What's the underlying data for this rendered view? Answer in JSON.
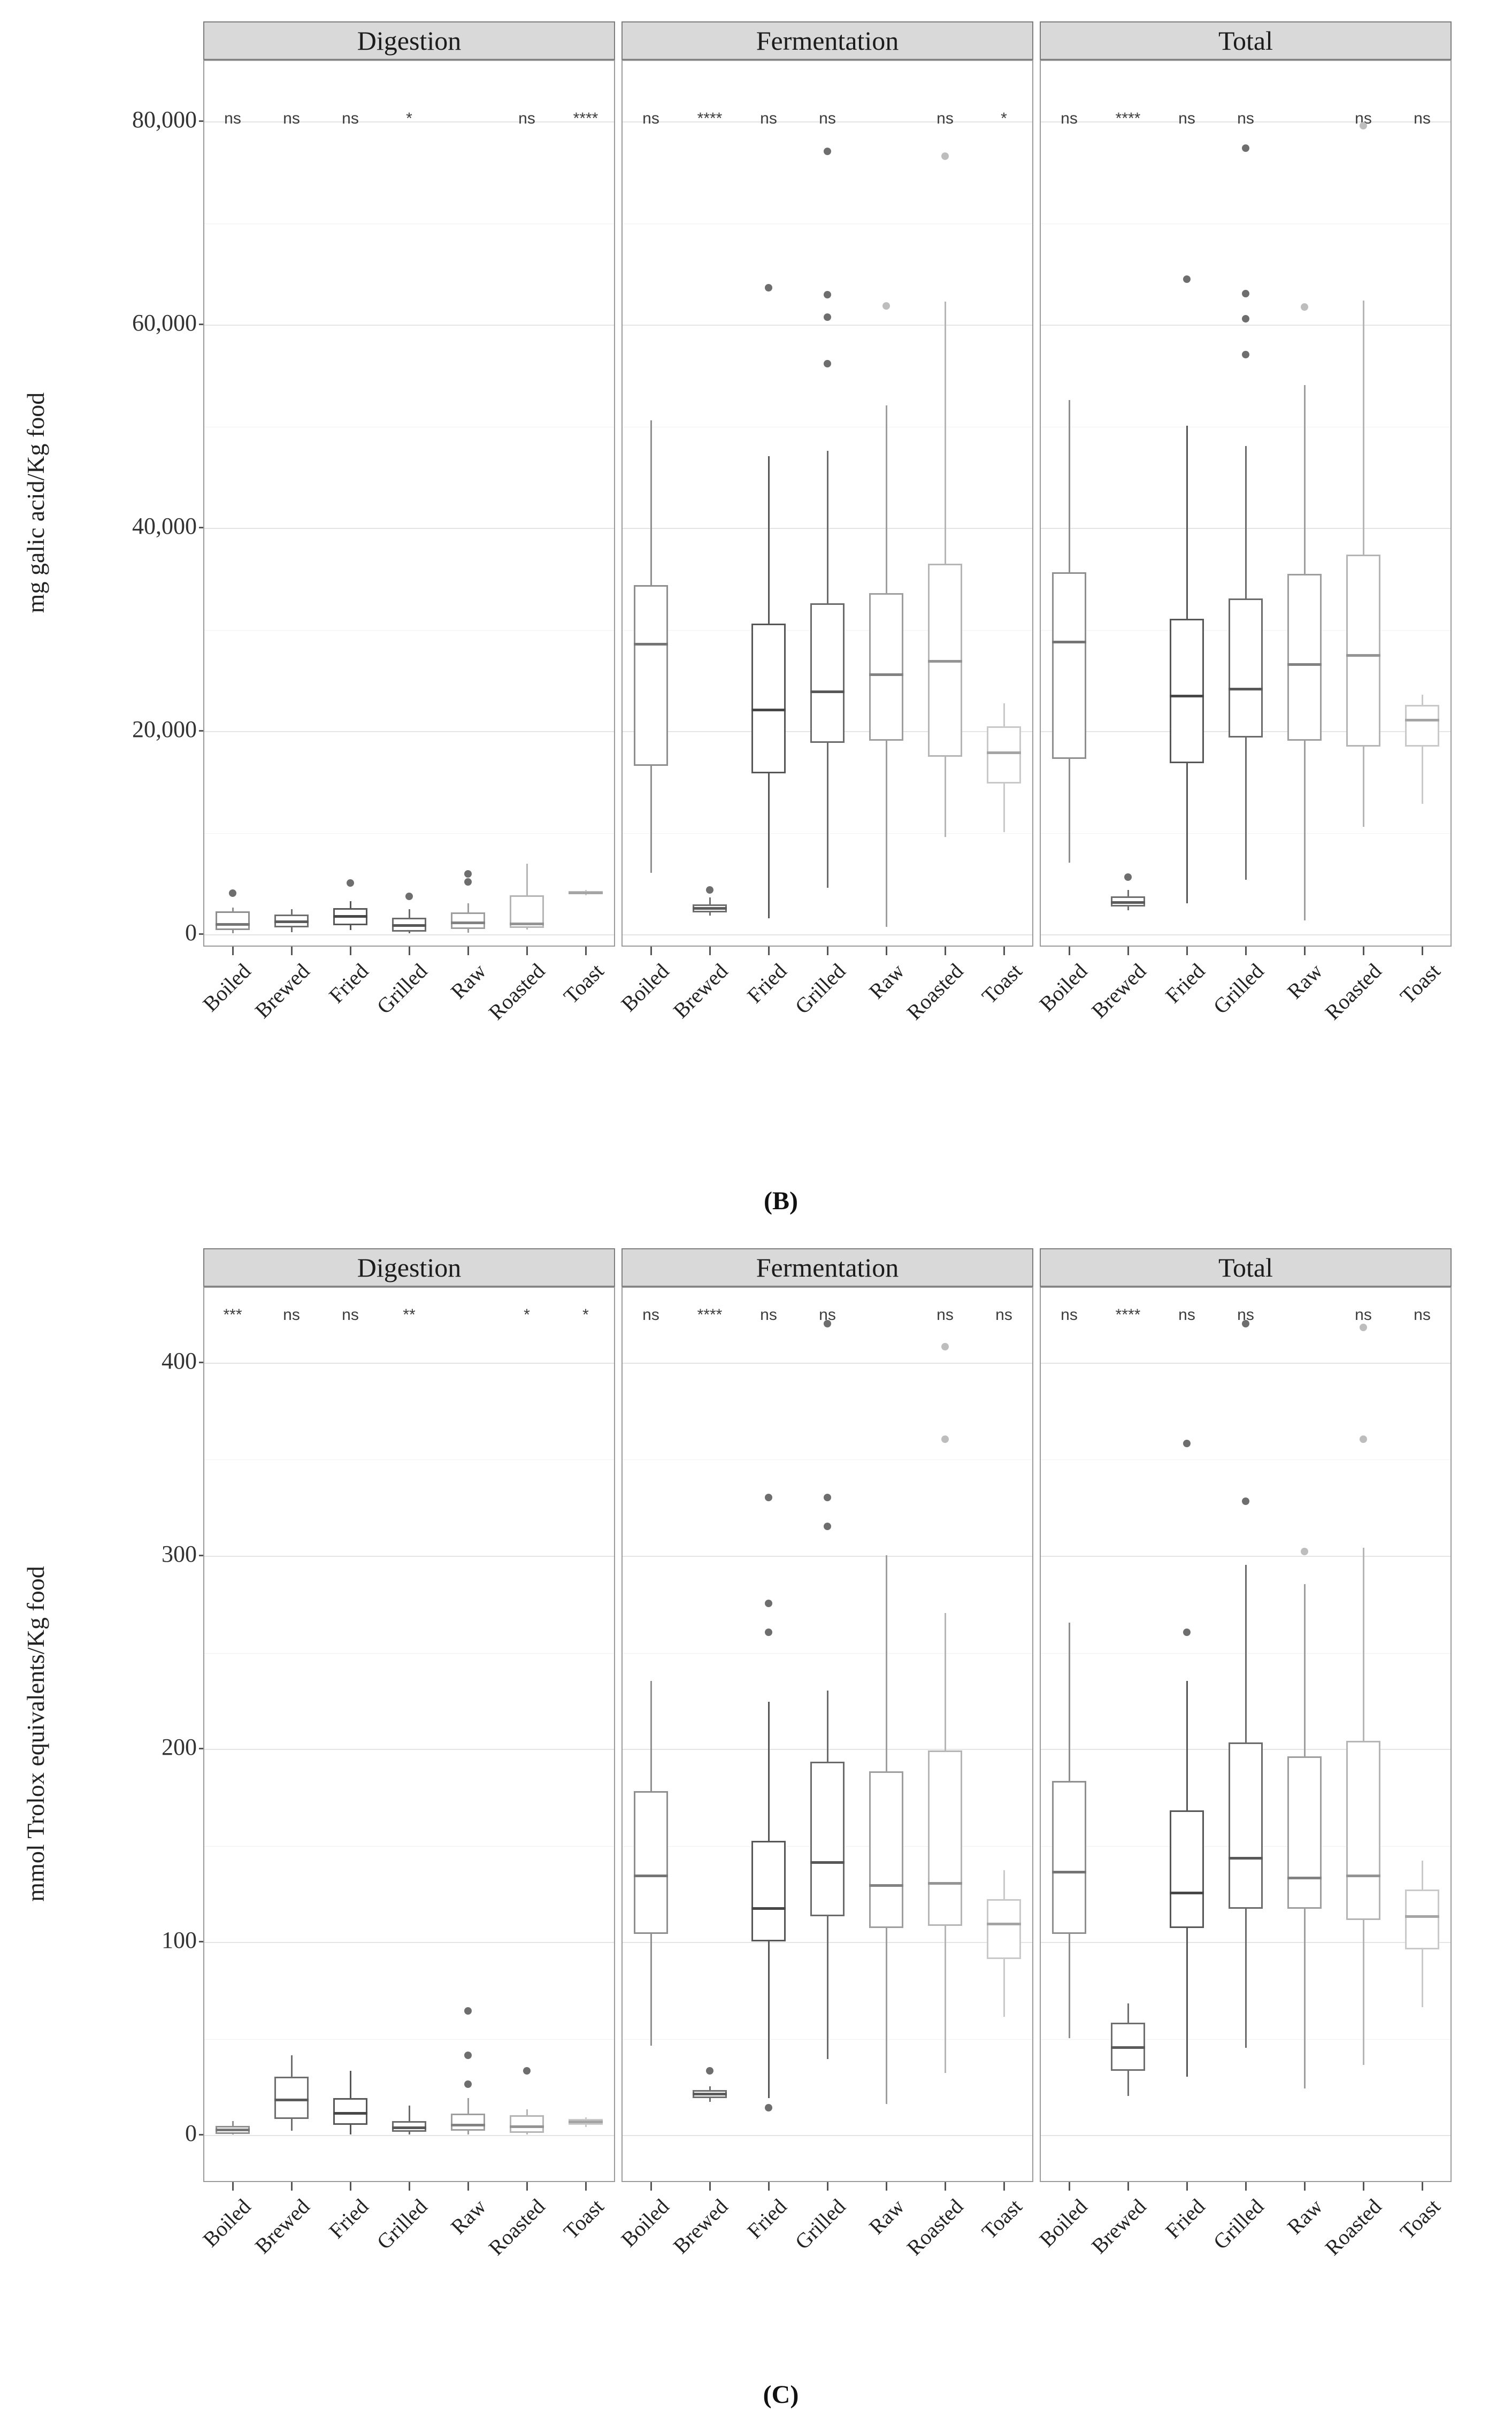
{
  "chart_data": {
    "type": "boxplot-grid",
    "description": "Two faceted box-plot figures (B top, C bottom), each with facets Digestion / Fermentation / Total and seven preparation categories; grey-scale boxes with significance annotations above each category.",
    "categories": [
      "Boiled",
      "Brewed",
      "Fried",
      "Grilled",
      "Raw",
      "Roasted",
      "Toast"
    ],
    "category_colors": [
      "#8f8f8f",
      "#6f6f6f",
      "#575757",
      "#6b6b6b",
      "#9e9e9e",
      "#b5b5b5",
      "#c9c9c9"
    ],
    "style": {
      "strip_bg": "#d9d9d9",
      "panel_border": "#9a9a9a",
      "outlier_dark": "#6e6e6e",
      "outlier_light": "#bdbdbd",
      "grid_major": "#e4e4e4",
      "grid_minor": "#f1f1f1"
    },
    "figures": [
      {
        "id": "B",
        "caption": "(B)",
        "y_axis": {
          "title": "mg galic acid/Kg food",
          "ylim": [
            -1160,
            86000
          ],
          "ticks": [
            {
              "v": 0,
              "label": "0"
            },
            {
              "v": 20000,
              "label": "20,000"
            },
            {
              "v": 40000,
              "label": "40,000"
            },
            {
              "v": 60000,
              "label": "60,000"
            },
            {
              "v": 80000,
              "label": "80,000"
            }
          ],
          "minor": [
            10000,
            30000,
            50000,
            70000
          ]
        },
        "facets": [
          {
            "title": "Digestion",
            "series": [
              {
                "category": "Boiled",
                "sig": "ns",
                "min": 50,
                "q1": 350,
                "median": 900,
                "q3": 2200,
                "max": 2600,
                "outliers": [
                  {
                    "v": 4000,
                    "tone": "dark"
                  }
                ]
              },
              {
                "category": "Brewed",
                "sig": "ns",
                "min": 150,
                "q1": 650,
                "median": 1200,
                "q3": 1900,
                "max": 2400,
                "outliers": []
              },
              {
                "category": "Fried",
                "sig": "ns",
                "min": 350,
                "q1": 850,
                "median": 1700,
                "q3": 2500,
                "max": 3200,
                "outliers": [
                  {
                    "v": 5000,
                    "tone": "dark"
                  }
                ]
              },
              {
                "category": "Grilled",
                "sig": "*",
                "min": 50,
                "q1": 200,
                "median": 800,
                "q3": 1600,
                "max": 2400,
                "outliers": [
                  {
                    "v": 3700,
                    "tone": "dark"
                  }
                ]
              },
              {
                "category": "Raw",
                "sig": "",
                "min": 100,
                "q1": 450,
                "median": 1100,
                "q3": 2100,
                "max": 3000,
                "outliers": [
                  {
                    "v": 5900,
                    "tone": "dark"
                  },
                  {
                    "v": 5100,
                    "tone": "dark"
                  }
                ]
              },
              {
                "category": "Roasted",
                "sig": "ns",
                "min": 400,
                "q1": 550,
                "median": 950,
                "q3": 3800,
                "max": 6900,
                "outliers": []
              },
              {
                "category": "Toast",
                "sig": "****",
                "min": 3800,
                "q1": 3900,
                "median": 4050,
                "q3": 4200,
                "max": 4300,
                "outliers": []
              }
            ]
          },
          {
            "title": "Fermentation",
            "series": [
              {
                "category": "Boiled",
                "sig": "ns",
                "min": 6000,
                "q1": 16500,
                "median": 28500,
                "q3": 34300,
                "max": 50500,
                "outliers": []
              },
              {
                "category": "Brewed",
                "sig": "****",
                "min": 1800,
                "q1": 2100,
                "median": 2500,
                "q3": 2900,
                "max": 3600,
                "outliers": [
                  {
                    "v": 4300,
                    "tone": "dark"
                  }
                ]
              },
              {
                "category": "Fried",
                "sig": "ns",
                "min": 1500,
                "q1": 15800,
                "median": 22000,
                "q3": 30500,
                "max": 47000,
                "outliers": [
                  {
                    "v": 63600,
                    "tone": "dark"
                  }
                ]
              },
              {
                "category": "Grilled",
                "sig": "ns",
                "min": 4500,
                "q1": 18800,
                "median": 23800,
                "q3": 32500,
                "max": 47500,
                "outliers": [
                  {
                    "v": 77000,
                    "tone": "dark"
                  },
                  {
                    "v": 62900,
                    "tone": "dark"
                  },
                  {
                    "v": 60700,
                    "tone": "dark"
                  },
                  {
                    "v": 56100,
                    "tone": "dark"
                  }
                ]
              },
              {
                "category": "Raw",
                "sig": "",
                "min": 700,
                "q1": 19000,
                "median": 25500,
                "q3": 33500,
                "max": 52000,
                "outliers": [
                  {
                    "v": 61800,
                    "tone": "light"
                  }
                ]
              },
              {
                "category": "Roasted",
                "sig": "ns",
                "min": 9500,
                "q1": 17400,
                "median": 26800,
                "q3": 36400,
                "max": 62200,
                "outliers": [
                  {
                    "v": 76500,
                    "tone": "light"
                  }
                ]
              },
              {
                "category": "Toast",
                "sig": "*",
                "min": 10000,
                "q1": 14800,
                "median": 17800,
                "q3": 20400,
                "max": 22700,
                "outliers": []
              }
            ]
          },
          {
            "title": "Total",
            "series": [
              {
                "category": "Boiled",
                "sig": "ns",
                "min": 7000,
                "q1": 17200,
                "median": 28700,
                "q3": 35600,
                "max": 52500,
                "outliers": []
              },
              {
                "category": "Brewed",
                "sig": "****",
                "min": 2300,
                "q1": 2700,
                "median": 3100,
                "q3": 3700,
                "max": 4300,
                "outliers": [
                  {
                    "v": 5600,
                    "tone": "dark"
                  }
                ]
              },
              {
                "category": "Fried",
                "sig": "ns",
                "min": 3000,
                "q1": 16800,
                "median": 23400,
                "q3": 31000,
                "max": 50000,
                "outliers": [
                  {
                    "v": 64400,
                    "tone": "dark"
                  }
                ]
              },
              {
                "category": "Grilled",
                "sig": "ns",
                "min": 5300,
                "q1": 19300,
                "median": 24100,
                "q3": 33000,
                "max": 48000,
                "outliers": [
                  {
                    "v": 77300,
                    "tone": "dark"
                  },
                  {
                    "v": 63000,
                    "tone": "dark"
                  },
                  {
                    "v": 60500,
                    "tone": "dark"
                  },
                  {
                    "v": 57000,
                    "tone": "dark"
                  }
                ]
              },
              {
                "category": "Raw",
                "sig": "",
                "min": 1300,
                "q1": 19000,
                "median": 26500,
                "q3": 35400,
                "max": 54000,
                "outliers": [
                  {
                    "v": 61700,
                    "tone": "light"
                  }
                ]
              },
              {
                "category": "Roasted",
                "sig": "ns",
                "min": 10500,
                "q1": 18400,
                "median": 27400,
                "q3": 37300,
                "max": 62300,
                "outliers": [
                  {
                    "v": 79500,
                    "tone": "light"
                  }
                ]
              },
              {
                "category": "Toast",
                "sig": "ns",
                "min": 12800,
                "q1": 18400,
                "median": 21000,
                "q3": 22500,
                "max": 23500,
                "outliers": []
              }
            ]
          }
        ]
      },
      {
        "id": "C",
        "caption": "(C)",
        "y_axis": {
          "title": "mmol Trolox equivalents/Kg food",
          "ylim": [
            -24,
            439
          ],
          "ticks": [
            {
              "v": 0,
              "label": "0"
            },
            {
              "v": 100,
              "label": "100"
            },
            {
              "v": 200,
              "label": "200"
            },
            {
              "v": 300,
              "label": "300"
            },
            {
              "v": 400,
              "label": "400"
            }
          ],
          "minor": [
            50,
            150,
            250,
            350
          ]
        },
        "facets": [
          {
            "title": "Digestion",
            "series": [
              {
                "category": "Boiled",
                "sig": "***",
                "min": 0,
                "q1": 0.5,
                "median": 2.5,
                "q3": 4.5,
                "max": 7,
                "outliers": []
              },
              {
                "category": "Brewed",
                "sig": "ns",
                "min": 2,
                "q1": 8,
                "median": 18,
                "q3": 30,
                "max": 41,
                "outliers": []
              },
              {
                "category": "Fried",
                "sig": "ns",
                "min": 0,
                "q1": 5,
                "median": 11,
                "q3": 19,
                "max": 33,
                "outliers": []
              },
              {
                "category": "Grilled",
                "sig": "**",
                "min": 0,
                "q1": 1.5,
                "median": 3.5,
                "q3": 7,
                "max": 15,
                "outliers": []
              },
              {
                "category": "Raw",
                "sig": "",
                "min": 0,
                "q1": 2,
                "median": 5,
                "q3": 11,
                "max": 19,
                "outliers": [
                  {
                    "v": 64,
                    "tone": "dark"
                  },
                  {
                    "v": 41,
                    "tone": "dark"
                  },
                  {
                    "v": 26,
                    "tone": "dark"
                  }
                ]
              },
              {
                "category": "Roasted",
                "sig": "*",
                "min": 0,
                "q1": 1,
                "median": 4,
                "q3": 10,
                "max": 13,
                "outliers": [
                  {
                    "v": 33,
                    "tone": "dark"
                  }
                ]
              },
              {
                "category": "Toast",
                "sig": "*",
                "min": 4,
                "q1": 5,
                "median": 6.5,
                "q3": 8,
                "max": 9,
                "outliers": []
              }
            ]
          },
          {
            "title": "Fermentation",
            "series": [
              {
                "category": "Boiled",
                "sig": "ns",
                "min": 46,
                "q1": 104,
                "median": 134,
                "q3": 178,
                "max": 235,
                "outliers": []
              },
              {
                "category": "Brewed",
                "sig": "****",
                "min": 17,
                "q1": 19,
                "median": 21,
                "q3": 23,
                "max": 25,
                "outliers": [
                  {
                    "v": 33,
                    "tone": "dark"
                  }
                ]
              },
              {
                "category": "Fried",
                "sig": "ns",
                "min": 19,
                "q1": 100,
                "median": 117,
                "q3": 152,
                "max": 224,
                "outliers": [
                  {
                    "v": 330,
                    "tone": "dark"
                  },
                  {
                    "v": 275,
                    "tone": "dark"
                  },
                  {
                    "v": 260,
                    "tone": "dark"
                  },
                  {
                    "v": 14,
                    "tone": "dark"
                  }
                ]
              },
              {
                "category": "Grilled",
                "sig": "ns",
                "min": 39,
                "q1": 113,
                "median": 141,
                "q3": 193,
                "max": 230,
                "outliers": [
                  {
                    "v": 420,
                    "tone": "dark"
                  },
                  {
                    "v": 330,
                    "tone": "dark"
                  },
                  {
                    "v": 315,
                    "tone": "dark"
                  }
                ]
              },
              {
                "category": "Raw",
                "sig": "",
                "min": 16,
                "q1": 107,
                "median": 129,
                "q3": 188,
                "max": 300,
                "outliers": []
              },
              {
                "category": "Roasted",
                "sig": "ns",
                "min": 32,
                "q1": 108,
                "median": 130,
                "q3": 199,
                "max": 270,
                "outliers": [
                  {
                    "v": 408,
                    "tone": "light"
                  },
                  {
                    "v": 360,
                    "tone": "light"
                  }
                ]
              },
              {
                "category": "Toast",
                "sig": "ns",
                "min": 61,
                "q1": 91,
                "median": 109,
                "q3": 122,
                "max": 137,
                "outliers": []
              }
            ]
          },
          {
            "title": "Total",
            "series": [
              {
                "category": "Boiled",
                "sig": "ns",
                "min": 50,
                "q1": 104,
                "median": 136,
                "q3": 183,
                "max": 265,
                "outliers": []
              },
              {
                "category": "Brewed",
                "sig": "****",
                "min": 20,
                "q1": 33,
                "median": 45,
                "q3": 58,
                "max": 68,
                "outliers": []
              },
              {
                "category": "Fried",
                "sig": "ns",
                "min": 30,
                "q1": 107,
                "median": 125,
                "q3": 168,
                "max": 235,
                "outliers": [
                  {
                    "v": 358,
                    "tone": "dark"
                  },
                  {
                    "v": 260,
                    "tone": "dark"
                  }
                ]
              },
              {
                "category": "Grilled",
                "sig": "ns",
                "min": 45,
                "q1": 117,
                "median": 143,
                "q3": 203,
                "max": 295,
                "outliers": [
                  {
                    "v": 420,
                    "tone": "dark"
                  },
                  {
                    "v": 328,
                    "tone": "dark"
                  }
                ]
              },
              {
                "category": "Raw",
                "sig": "",
                "min": 24,
                "q1": 117,
                "median": 133,
                "q3": 196,
                "max": 285,
                "outliers": [
                  {
                    "v": 302,
                    "tone": "light"
                  }
                ]
              },
              {
                "category": "Roasted",
                "sig": "ns",
                "min": 36,
                "q1": 111,
                "median": 134,
                "q3": 204,
                "max": 304,
                "outliers": [
                  {
                    "v": 418,
                    "tone": "light"
                  },
                  {
                    "v": 360,
                    "tone": "light"
                  }
                ]
              },
              {
                "category": "Toast",
                "sig": "ns",
                "min": 66,
                "q1": 96,
                "median": 113,
                "q3": 127,
                "max": 142,
                "outliers": []
              }
            ]
          }
        ]
      }
    ]
  }
}
